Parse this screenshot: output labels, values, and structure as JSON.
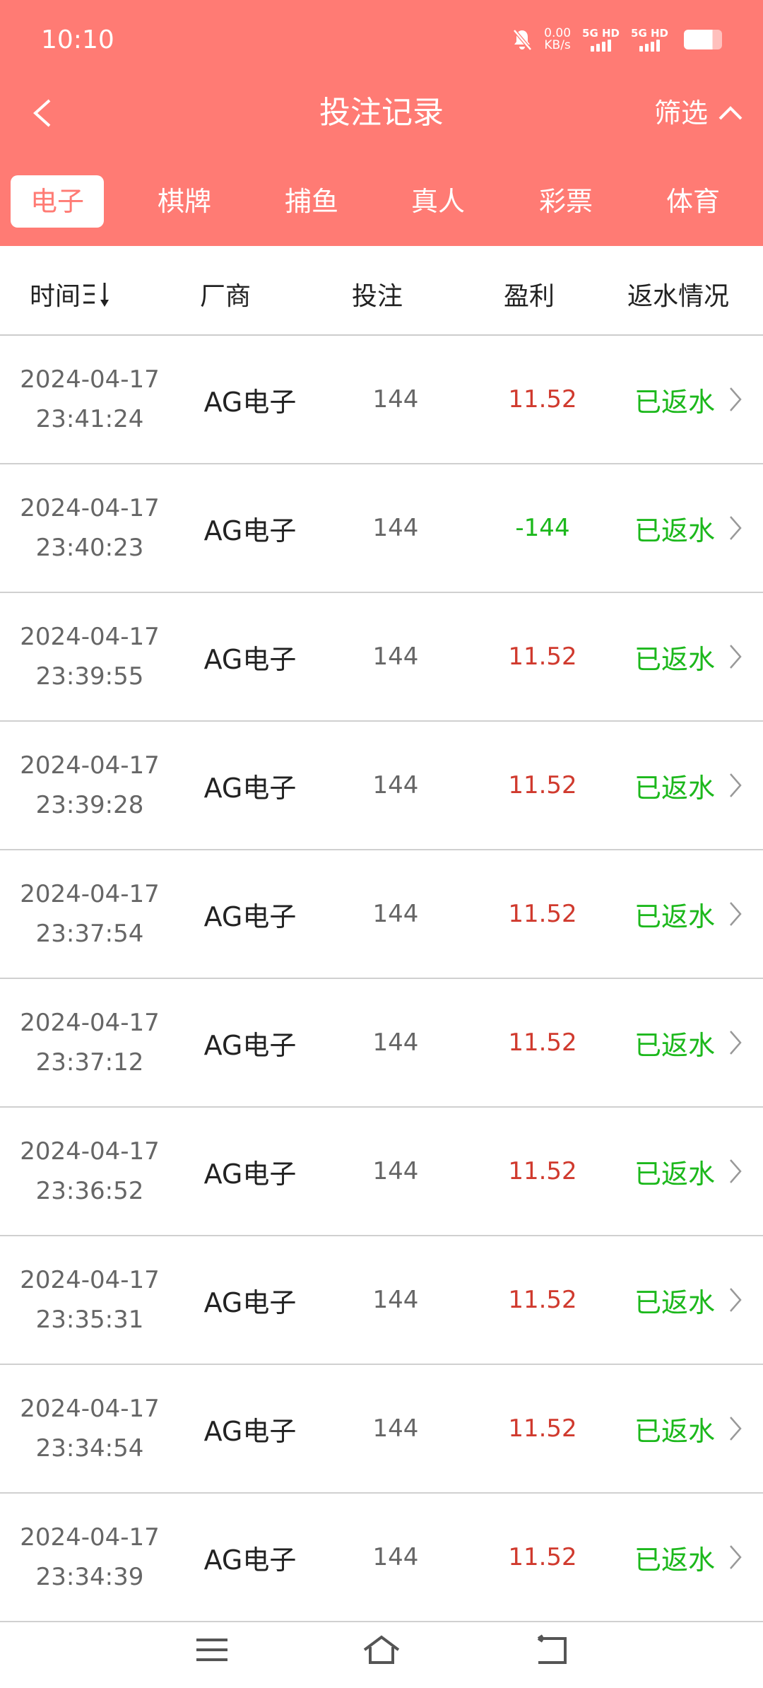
{
  "status_bar": {
    "time": "10:10",
    "speed_value": "0.00",
    "speed_unit": "KB/s",
    "sim1": "5G HD",
    "sim2": "5G HD",
    "icons": [
      "bell-off-icon",
      "signal-icon",
      "battery-icon"
    ]
  },
  "header": {
    "title": "投注记录",
    "filter_label": "筛选",
    "back_icon": "chevron-left-icon",
    "filter_icon": "chevron-up-icon"
  },
  "tabs": [
    {
      "label": "电子",
      "active": true
    },
    {
      "label": "棋牌"
    },
    {
      "label": "捕鱼"
    },
    {
      "label": "真人"
    },
    {
      "label": "彩票"
    },
    {
      "label": "体育"
    }
  ],
  "columns": {
    "time": "时间",
    "sort_icon": "sort-desc-icon",
    "vendor": "厂商",
    "bet": "投注",
    "profit": "盈利",
    "rebate": "返水情况"
  },
  "colors": {
    "brand": "#FF7B74",
    "profit_positive": "#D03A2E",
    "profit_negative": "#1CB81C",
    "rebate": "#1CB81C"
  },
  "rows": [
    {
      "date": "2024-04-17",
      "time": "23:41:24",
      "vendor": "AG电子",
      "bet": "144",
      "profit": "11.52",
      "status": "已返水"
    },
    {
      "date": "2024-04-17",
      "time": "23:40:23",
      "vendor": "AG电子",
      "bet": "144",
      "profit": "-144",
      "status": "已返水"
    },
    {
      "date": "2024-04-17",
      "time": "23:39:55",
      "vendor": "AG电子",
      "bet": "144",
      "profit": "11.52",
      "status": "已返水"
    },
    {
      "date": "2024-04-17",
      "time": "23:39:28",
      "vendor": "AG电子",
      "bet": "144",
      "profit": "11.52",
      "status": "已返水"
    },
    {
      "date": "2024-04-17",
      "time": "23:37:54",
      "vendor": "AG电子",
      "bet": "144",
      "profit": "11.52",
      "status": "已返水"
    },
    {
      "date": "2024-04-17",
      "time": "23:37:12",
      "vendor": "AG电子",
      "bet": "144",
      "profit": "11.52",
      "status": "已返水"
    },
    {
      "date": "2024-04-17",
      "time": "23:36:52",
      "vendor": "AG电子",
      "bet": "144",
      "profit": "11.52",
      "status": "已返水"
    },
    {
      "date": "2024-04-17",
      "time": "23:35:31",
      "vendor": "AG电子",
      "bet": "144",
      "profit": "11.52",
      "status": "已返水"
    },
    {
      "date": "2024-04-17",
      "time": "23:34:54",
      "vendor": "AG电子",
      "bet": "144",
      "profit": "11.52",
      "status": "已返水"
    },
    {
      "date": "2024-04-17",
      "time": "23:34:39",
      "vendor": "AG电子",
      "bet": "144",
      "profit": "11.52",
      "status": "已返水"
    }
  ],
  "nav_bar": {
    "icons": [
      "menu-icon",
      "home-icon",
      "back-icon"
    ]
  }
}
